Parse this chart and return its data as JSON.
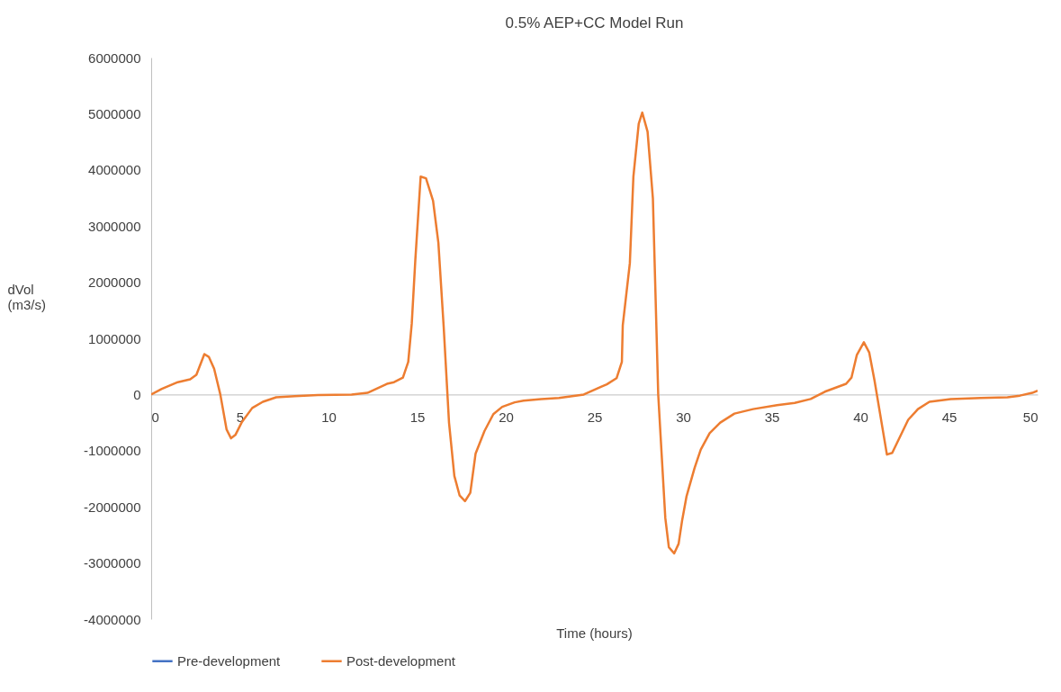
{
  "chart_data": {
    "type": "line",
    "title": "0.5% AEP+CC Model Run",
    "xlabel": "Time (hours)",
    "ylabel": "dVol (m3/s)",
    "x": [
      0,
      0.6,
      1.5,
      2.2,
      2.55,
      3.0,
      3.25,
      3.55,
      3.9,
      4.25,
      4.5,
      4.75,
      5.1,
      5.7,
      6.3,
      7.05,
      8.1,
      9.4,
      11.3,
      12.2,
      13.3,
      13.7,
      14.2,
      14.5,
      14.7,
      14.9,
      15.2,
      15.5,
      15.9,
      16.2,
      16.5,
      16.8,
      17.1,
      17.4,
      17.7,
      18.0,
      18.3,
      18.8,
      19.3,
      19.8,
      20.5,
      21,
      22,
      23,
      24.4,
      25.4,
      25.7,
      26.25,
      26.55,
      26.6,
      27.0,
      27.2,
      27.5,
      27.7,
      28.0,
      28.3,
      28.6,
      29.0,
      29.2,
      29.5,
      29.75,
      29.95,
      30.2,
      30.65,
      31.0,
      31.5,
      32.1,
      32.9,
      33.95,
      35.3,
      36.3,
      37.2,
      38.0,
      39.2,
      39.5,
      39.8,
      40.2,
      40.5,
      40.8,
      41.5,
      41.8,
      42.7,
      43.25,
      43.9,
      45.1,
      46.8,
      48.3,
      49.0,
      49.7,
      50
    ],
    "xlim": [
      0,
      50
    ],
    "xticks": [
      0,
      5,
      10,
      15,
      20,
      25,
      30,
      35,
      40,
      45,
      50
    ],
    "ylim": [
      -4000000,
      6000000
    ],
    "yticks": [
      -4000000,
      -3000000,
      -2000000,
      -1000000,
      0,
      1000000,
      2000000,
      3000000,
      4000000,
      5000000,
      6000000
    ],
    "legend": "bottom",
    "series": [
      {
        "name": "Pre-development",
        "color": "#4472c4",
        "values": [
          null,
          null,
          null,
          null,
          null,
          null,
          null,
          null,
          null,
          null,
          null,
          null,
          null,
          null,
          null,
          null,
          null,
          null,
          null,
          null,
          null,
          null,
          null,
          null,
          null,
          null,
          null,
          null,
          null,
          null,
          null,
          null,
          null,
          null,
          null,
          null,
          null,
          null,
          null,
          null,
          null,
          null,
          null,
          null,
          null,
          null,
          null,
          null,
          null,
          null,
          null,
          null,
          null,
          null,
          null,
          null,
          null,
          null,
          null,
          null,
          null,
          null,
          null,
          null,
          null,
          null,
          null,
          null,
          null,
          null,
          null,
          null,
          null,
          null,
          null,
          null,
          null,
          null,
          null,
          null,
          null,
          null,
          null,
          null,
          null,
          null,
          null,
          null,
          null,
          null
        ]
      },
      {
        "name": "Post-development",
        "color": "#ed7d31",
        "values": [
          0,
          100000,
          220000,
          270000,
          350000,
          720000,
          670000,
          460000,
          0,
          -620000,
          -780000,
          -720000,
          -500000,
          -240000,
          -130000,
          -50000,
          -30000,
          -10000,
          0,
          30000,
          190000,
          220000,
          300000,
          580000,
          1270000,
          2400000,
          3880000,
          3850000,
          3450000,
          2700000,
          1200000,
          -500000,
          -1450000,
          -1800000,
          -1900000,
          -1750000,
          -1050000,
          -650000,
          -350000,
          -220000,
          -140000,
          -110000,
          -80000,
          -60000,
          0,
          140000,
          180000,
          290000,
          580000,
          1230000,
          2340000,
          3880000,
          4820000,
          5020000,
          4680000,
          3490000,
          0,
          -2200000,
          -2720000,
          -2830000,
          -2660000,
          -2240000,
          -1810000,
          -1310000,
          -980000,
          -690000,
          -500000,
          -340000,
          -260000,
          -190000,
          -150000,
          -80000,
          50000,
          190000,
          300000,
          700000,
          930000,
          750000,
          250000,
          -1070000,
          -1040000,
          -450000,
          -260000,
          -130000,
          -80000,
          -60000,
          -50000,
          -20000,
          30000,
          70000
        ]
      }
    ]
  }
}
